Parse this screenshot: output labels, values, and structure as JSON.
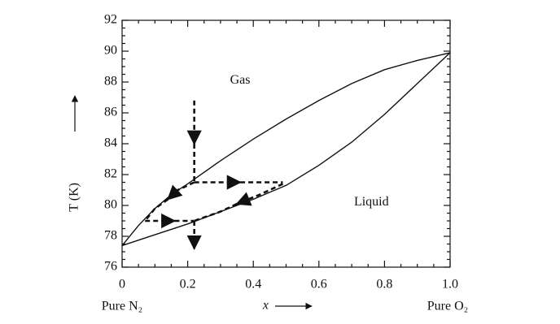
{
  "chart_data": {
    "type": "line",
    "xlabel": "x",
    "ylabel": "T (K)",
    "xlim": [
      0,
      1
    ],
    "ylim": [
      76,
      92
    ],
    "xticks": [
      0,
      0.2,
      0.4,
      0.6,
      0.8,
      {
        "value": 1,
        "label": "1.0"
      }
    ],
    "yticks": [
      76,
      78,
      80,
      82,
      84,
      86,
      88,
      90,
      92
    ],
    "minor_ticks": true,
    "end_labels": [
      "Pure N₂",
      "Pure O₂"
    ],
    "annotations": [
      {
        "text": "Gas",
        "x": 0.36,
        "y": 88.1
      },
      {
        "text": "Liquid",
        "x": 0.76,
        "y": 80.2
      }
    ],
    "series": [
      {
        "color": "#111111",
        "dashed": false,
        "arrow": false,
        "x": [
          0,
          0.05,
          0.1,
          0.15,
          0.2,
          0.3,
          0.4,
          0.5,
          0.6,
          0.7,
          0.8,
          0.9,
          1
        ],
        "values": [
          77.4,
          78.7,
          79.8,
          80.7,
          81.4,
          82.9,
          84.3,
          85.6,
          86.8,
          87.9,
          88.8,
          89.4,
          89.9
        ]
      },
      {
        "color": "#111111",
        "dashed": false,
        "arrow": false,
        "x": [
          0,
          0.1,
          0.2,
          0.3,
          0.4,
          0.5,
          0.6,
          0.7,
          0.8,
          0.9,
          1
        ],
        "values": [
          77.4,
          78.1,
          78.8,
          79.6,
          80.4,
          81.3,
          82.6,
          84.1,
          85.9,
          87.9,
          89.9
        ]
      },
      {
        "color": "#111111",
        "dashed": true,
        "arrow": true,
        "x": [
          0.22,
          0.22
        ],
        "values": [
          86.8,
          84.0
        ]
      },
      {
        "color": "#111111",
        "dashed": true,
        "arrow": false,
        "x": [
          0.22,
          0.22
        ],
        "values": [
          84.0,
          81.5
        ]
      },
      {
        "color": "#111111",
        "dashed": true,
        "arrow": true,
        "x": [
          0.22,
          0.36
        ],
        "values": [
          81.5,
          81.5
        ]
      },
      {
        "color": "#111111",
        "dashed": true,
        "arrow": false,
        "x": [
          0.36,
          0.49
        ],
        "values": [
          81.5,
          81.5
        ]
      },
      {
        "color": "#111111",
        "dashed": true,
        "arrow": true,
        "x": [
          0.49,
          0.42,
          0.35
        ],
        "values": [
          81.4,
          80.7,
          80.1
        ]
      },
      {
        "color": "#111111",
        "dashed": true,
        "arrow": false,
        "x": [
          0.35,
          0.3,
          0.22
        ],
        "values": [
          80.1,
          79.6,
          79.0
        ]
      },
      {
        "color": "#111111",
        "dashed": true,
        "arrow": true,
        "x": [
          0.22,
          0.17,
          0.14
        ],
        "values": [
          81.5,
          81.0,
          80.4
        ]
      },
      {
        "color": "#111111",
        "dashed": true,
        "arrow": false,
        "x": [
          0.14,
          0.1,
          0.07
        ],
        "values": [
          80.4,
          79.8,
          79.0
        ]
      },
      {
        "color": "#111111",
        "dashed": true,
        "arrow": true,
        "x": [
          0.07,
          0.16
        ],
        "values": [
          79.0,
          79.0
        ]
      },
      {
        "color": "#111111",
        "dashed": true,
        "arrow": false,
        "x": [
          0.16,
          0.22
        ],
        "values": [
          79.0,
          79.0
        ]
      },
      {
        "color": "#111111",
        "dashed": true,
        "arrow": true,
        "x": [
          0.22,
          0.22
        ],
        "values": [
          79.0,
          77.2
        ]
      }
    ]
  }
}
